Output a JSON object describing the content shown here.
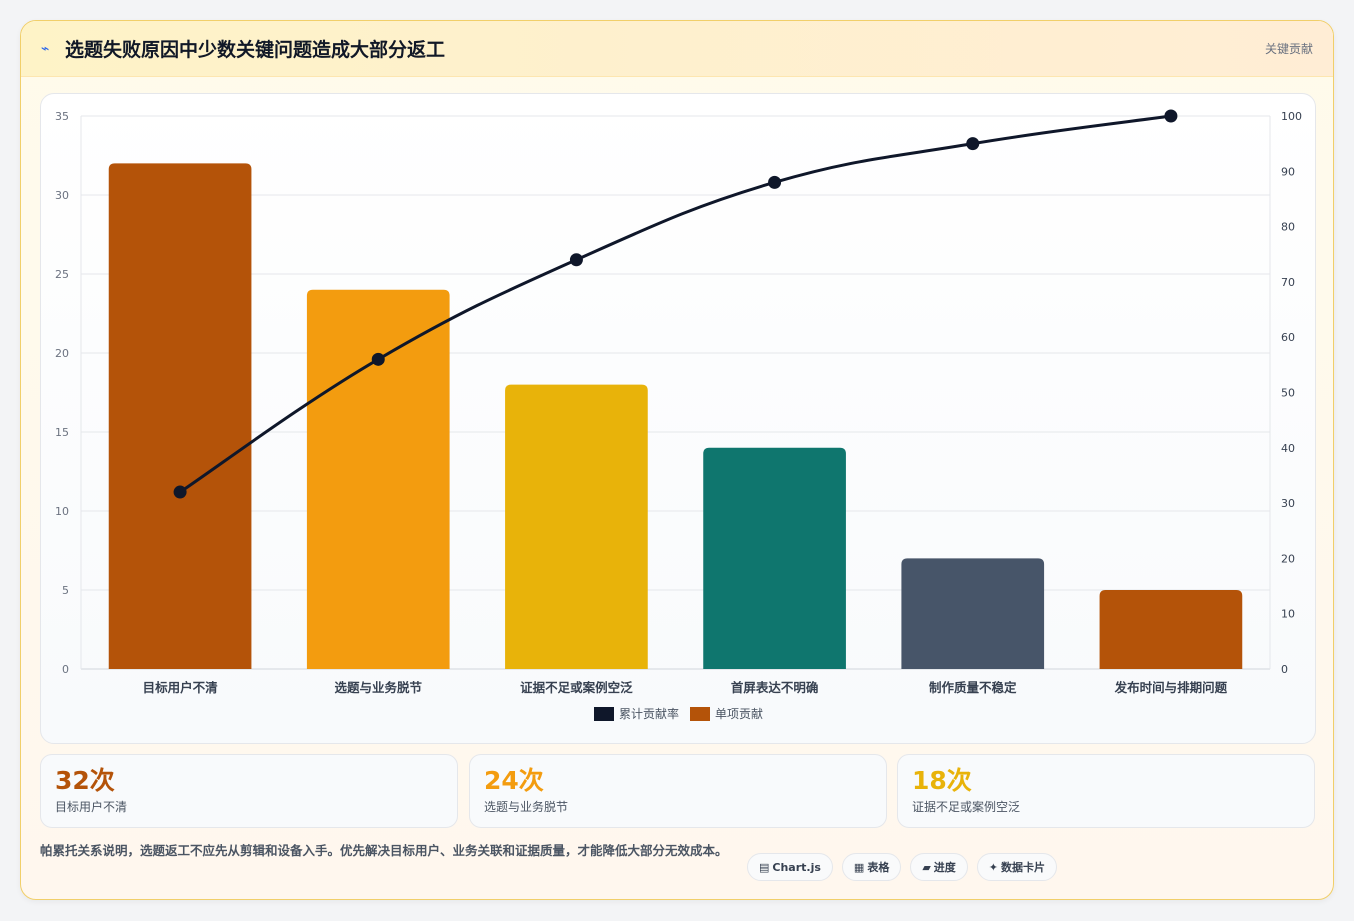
{
  "header": {
    "icon": "lightning-icon",
    "title": "选题失败原因中少数关键问题造成大部分返工",
    "right_label": "关键贡献"
  },
  "chart_data": {
    "type": "bar",
    "categories": [
      "目标用户不清",
      "选题与业务脱节",
      "证据不足或案例空泛",
      "首屏表达不明确",
      "制作质量不稳定",
      "发布时间与排期问题"
    ],
    "series": [
      {
        "name": "单项贡献",
        "type": "bar",
        "axis": "left",
        "values": [
          32,
          24,
          18,
          14,
          7,
          5
        ],
        "colors": [
          "#b45309",
          "#f39c0f",
          "#e8b30a",
          "#0f766e",
          "#475569",
          "#b45309"
        ]
      },
      {
        "name": "累计贡献率",
        "type": "line",
        "axis": "right",
        "values": [
          32,
          56,
          74,
          88,
          95,
          100
        ],
        "color": "#0f172a"
      }
    ],
    "y_left": {
      "min": 0,
      "max": 35,
      "ticks": [
        0,
        5,
        10,
        15,
        20,
        25,
        30,
        35
      ]
    },
    "y_right": {
      "min": 0,
      "max": 100,
      "ticks": [
        0,
        10,
        20,
        30,
        40,
        50,
        60,
        70,
        80,
        90,
        100
      ]
    },
    "legend": {
      "position": "bottom",
      "entries": [
        "累计贡献率",
        "单项贡献"
      ]
    },
    "grid": true
  },
  "stats": [
    {
      "value": "32次",
      "label": "目标用户不清",
      "color": "#b45309"
    },
    {
      "value": "24次",
      "label": "选题与业务脱节",
      "color": "#f39c0f"
    },
    {
      "value": "18次",
      "label": "证据不足或案例空泛",
      "color": "#e8b30a"
    }
  ],
  "note": "帕累托关系说明，选题返工不应先从剪辑和设备入手。优先解决目标用户、业务关联和证据质量，才能降低大部分无效成本。",
  "tags": [
    {
      "icon": "chart-icon",
      "glyph": "▤",
      "label": "Chart.js"
    },
    {
      "icon": "table-icon",
      "glyph": "▦",
      "label": "表格"
    },
    {
      "icon": "progress-icon",
      "glyph": "▰",
      "label": "进度"
    },
    {
      "icon": "sparkle-icon",
      "glyph": "✦",
      "label": "数据卡片"
    }
  ]
}
